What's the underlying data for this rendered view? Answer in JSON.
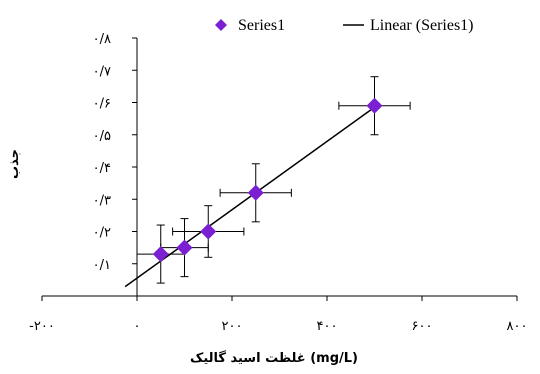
{
  "chart_data": {
    "type": "scatter",
    "title": "",
    "xlabel": "غلظت اسید گالیک (mg/L)",
    "ylabel": "جذب",
    "xlim": [
      -200,
      800
    ],
    "ylim": [
      0,
      0.8
    ],
    "x_ticks": [
      -200,
      0,
      200,
      400,
      600,
      800
    ],
    "x_tick_labels": [
      "-۲۰۰",
      "۰",
      "۲۰۰",
      "۴۰۰",
      "۶۰۰",
      "۸۰۰"
    ],
    "y_ticks": [
      0.1,
      0.2,
      0.3,
      0.4,
      0.5,
      0.6,
      0.7,
      0.8
    ],
    "y_tick_labels": [
      "۰/۱",
      "۰/۲",
      "۰/۳",
      "۰/۴",
      "۰/۵",
      "۰/۶",
      "۰/۷",
      "۰/۸"
    ],
    "grid": false,
    "legend_position": "top",
    "series": [
      {
        "name": "Series1",
        "color": "#7B1FD3",
        "marker": "diamond",
        "x": [
          50,
          100,
          150,
          250,
          500
        ],
        "y": [
          0.13,
          0.15,
          0.2,
          0.32,
          0.59
        ],
        "x_error": [
          50,
          50,
          75,
          75,
          75
        ],
        "y_error": [
          0.09,
          0.09,
          0.08,
          0.09,
          0.09
        ]
      }
    ],
    "trendline": {
      "name": "Linear (Series1)",
      "type": "linear",
      "color": "#000000",
      "x_range": [
        -25,
        500
      ]
    }
  }
}
